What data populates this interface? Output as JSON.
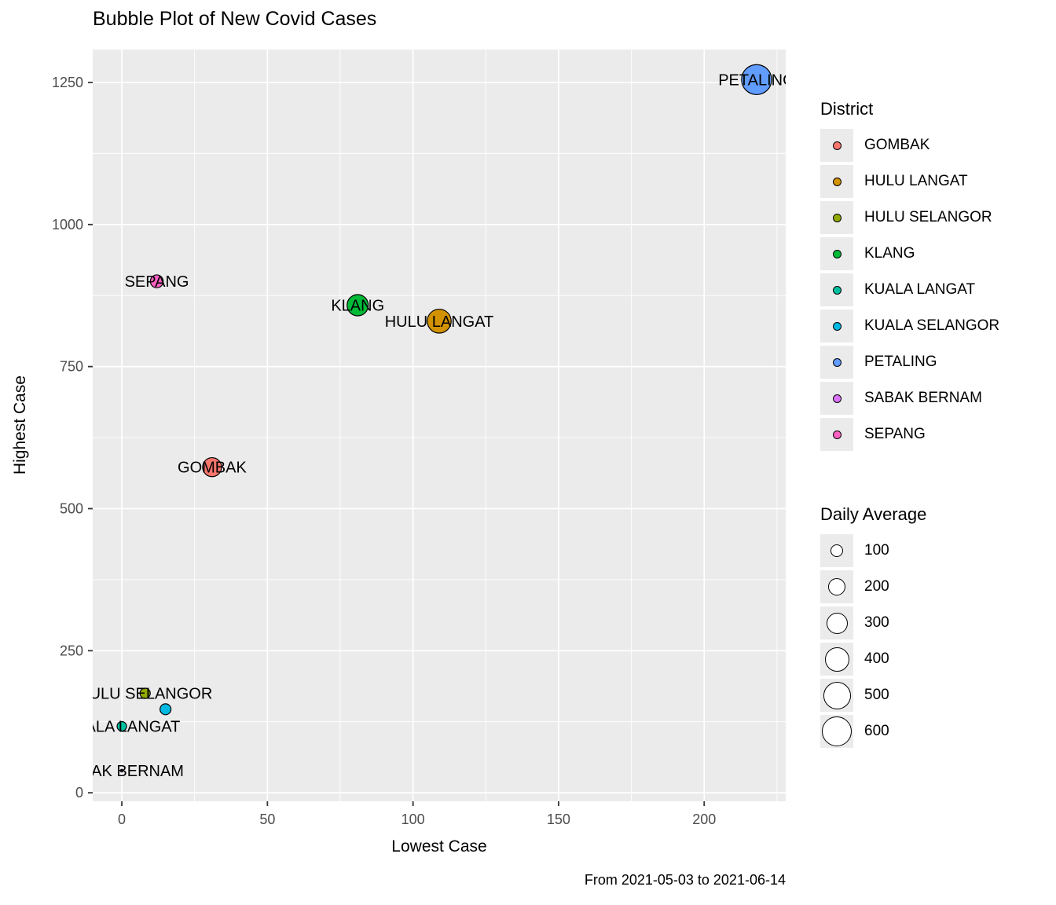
{
  "title": "Bubble Plot of New Covid Cases",
  "caption": "From 2021-05-03 to 2021-06-14",
  "axes": {
    "x_label": "Lowest Case",
    "y_label": "Highest Case"
  },
  "legend": {
    "district_title": "District",
    "size_title": "Daily Average",
    "districts": [
      {
        "label": "GOMBAK",
        "color": "#F8766D"
      },
      {
        "label": "HULU LANGAT",
        "color": "#D39200"
      },
      {
        "label": "HULU SELANGOR",
        "color": "#93AA00"
      },
      {
        "label": "KLANG",
        "color": "#00BA38"
      },
      {
        "label": "KUALA LANGAT",
        "color": "#00C19F"
      },
      {
        "label": "KUALA SELANGOR",
        "color": "#00B9E3"
      },
      {
        "label": "PETALING",
        "color": "#619CFF"
      },
      {
        "label": "SABAK BERNAM",
        "color": "#DB72FB"
      },
      {
        "label": "SEPANG",
        "color": "#FF61C3"
      }
    ],
    "size_values": [
      100,
      200,
      300,
      400,
      500,
      600
    ]
  },
  "chart_data": {
    "type": "scatter",
    "title": "Bubble Plot of New Covid Cases",
    "xlabel": "Lowest Case",
    "ylabel": "Highest Case",
    "caption": "From 2021-05-03 to 2021-06-14",
    "xlim": [
      -10,
      228
    ],
    "ylim": [
      -15,
      1308
    ],
    "x_ticks": [
      0,
      50,
      100,
      150,
      200
    ],
    "x_minor_ticks": [
      25,
      75,
      125,
      175,
      225
    ],
    "y_ticks": [
      0,
      250,
      500,
      750,
      1000,
      1250
    ],
    "y_minor_ticks": [
      125,
      375,
      625,
      875,
      1125
    ],
    "size_scale": {
      "label": "Daily Average",
      "legend_values": [
        100,
        200,
        300,
        400,
        500,
        600
      ]
    },
    "legend_position": "right",
    "grid": true,
    "points": [
      {
        "district": "GOMBAK",
        "lowest_case": 31,
        "highest_case": 573,
        "daily_average": 240,
        "color": "#F8766D",
        "label_shown": true
      },
      {
        "district": "HULU LANGAT",
        "lowest_case": 109,
        "highest_case": 830,
        "daily_average": 380,
        "color": "#D39200",
        "label_shown": true
      },
      {
        "district": "HULU SELANGOR",
        "lowest_case": 8,
        "highest_case": 175,
        "daily_average": 70,
        "color": "#93AA00",
        "label_shown": true
      },
      {
        "district": "KLANG",
        "lowest_case": 81,
        "highest_case": 858,
        "daily_average": 300,
        "color": "#00BA38",
        "label_shown": true
      },
      {
        "district": "KUALA LANGAT",
        "lowest_case": 0,
        "highest_case": 117,
        "daily_average": 60,
        "color": "#00C19F",
        "label_shown": true
      },
      {
        "district": "KUALA SELANGOR",
        "lowest_case": 15,
        "highest_case": 147,
        "daily_average": 80,
        "color": "#00B9E3",
        "label_shown": false
      },
      {
        "district": "PETALING",
        "lowest_case": 218,
        "highest_case": 1255,
        "daily_average": 600,
        "color": "#619CFF",
        "label_shown": true
      },
      {
        "district": "SABAK BERNAM",
        "lowest_case": 0,
        "highest_case": 39,
        "daily_average": 5,
        "color": "#DB72FB",
        "label_shown": true
      },
      {
        "district": "SEPANG",
        "lowest_case": 12,
        "highest_case": 900,
        "daily_average": 110,
        "color": "#FF61C3",
        "label_shown": true
      }
    ]
  },
  "theme": {
    "panel": "#EBEBEB",
    "grid_major": "#FFFFFF",
    "grid_minor": "#FFFFFF",
    "tick_label_color": "#4D4D4D",
    "tick_mark_color": "#333333",
    "legend_key": "#EBEBEB",
    "text_color": "#000000"
  }
}
